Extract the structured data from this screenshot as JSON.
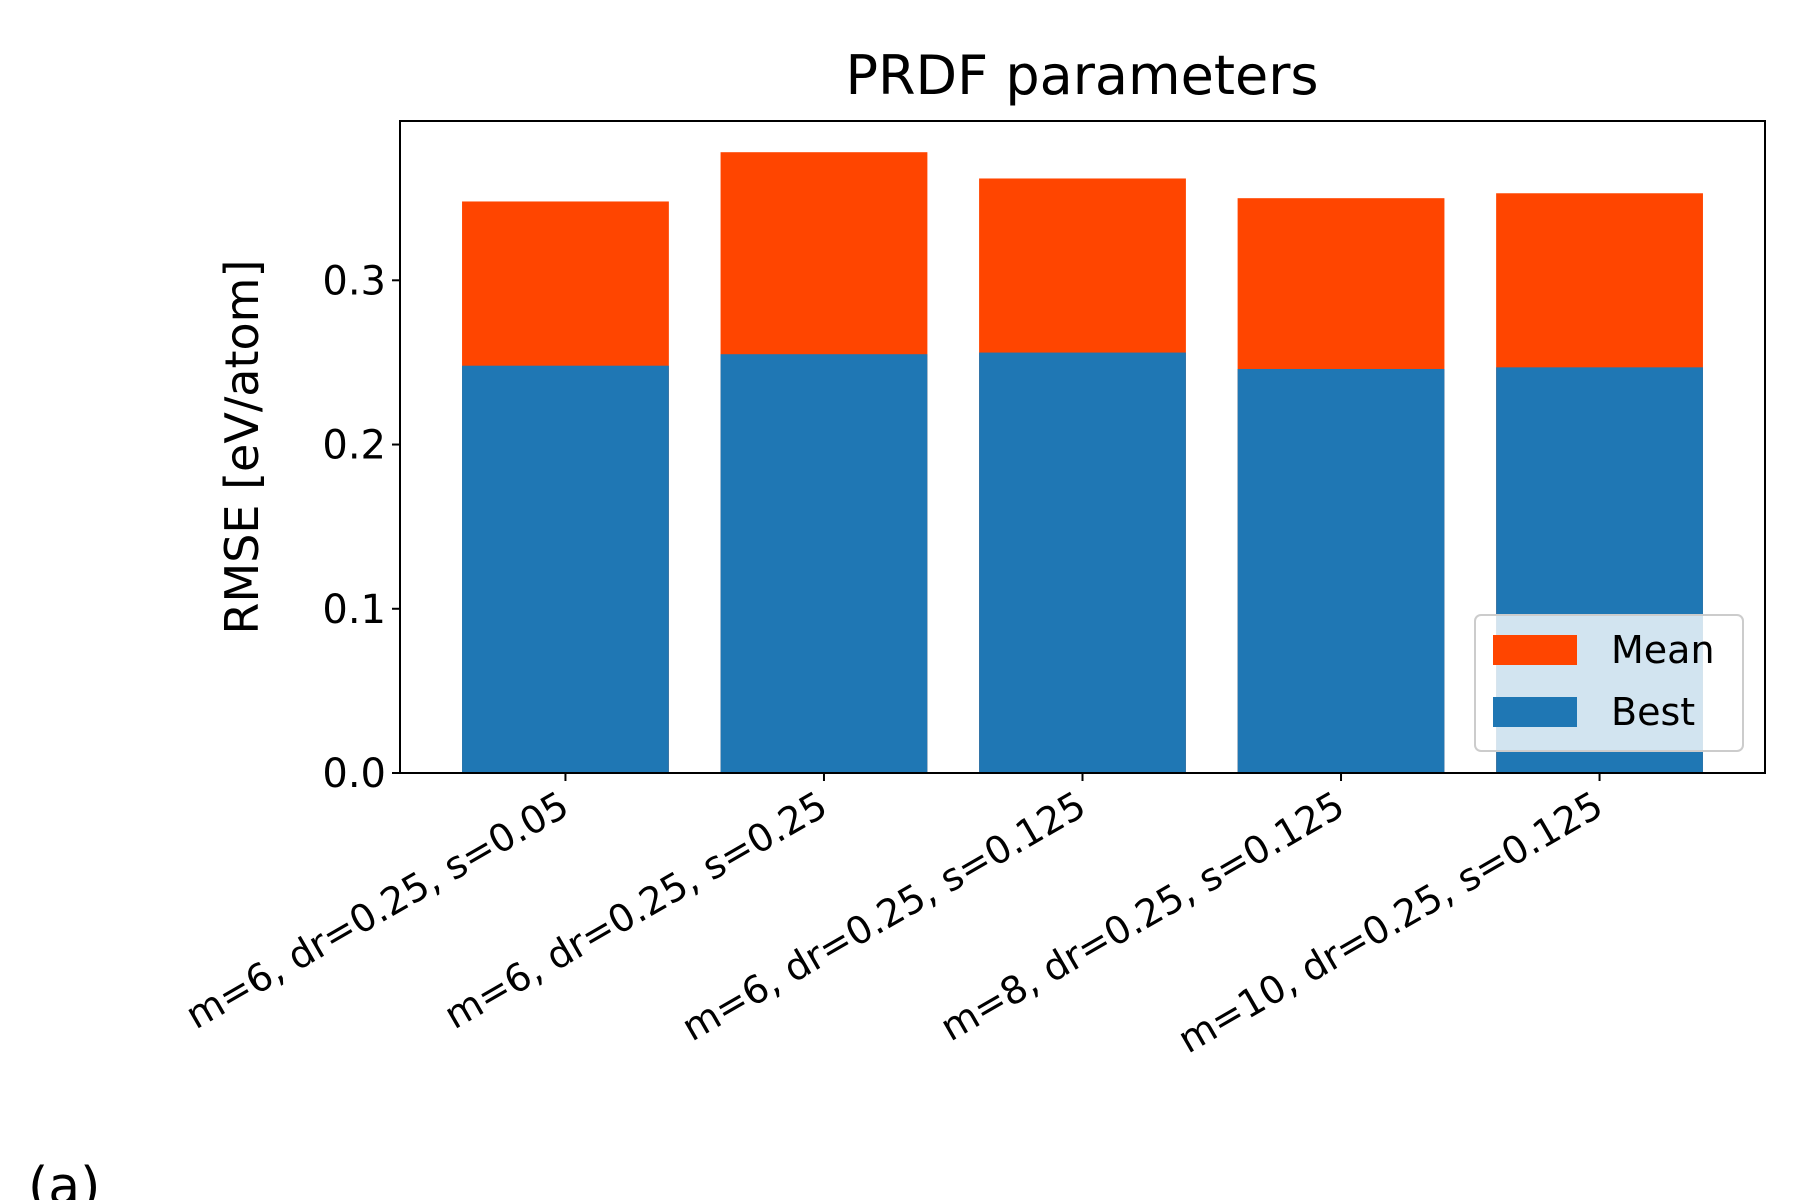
{
  "chart_data": {
    "type": "bar",
    "title": "PRDF parameters",
    "y_label": "RMSE [eV/atom]",
    "categories": [
      "m=6, dr=0.25, s=0.05",
      "m=6, dr=0.25, s=0.25",
      "m=6, dr=0.25, s=0.125",
      "m=8, dr=0.25, s=0.125",
      "m=10, dr=0.25, s=0.125"
    ],
    "series": [
      {
        "name": "Mean",
        "color": "#ff4500",
        "values": [
          0.348,
          0.378,
          0.362,
          0.35,
          0.353
        ]
      },
      {
        "name": "Best",
        "color": "#1f77b4",
        "values": [
          0.248,
          0.255,
          0.256,
          0.246,
          0.247
        ]
      }
    ],
    "ylim": [
      0,
      0.397
    ],
    "yticks": [
      {
        "value": 0,
        "label": "0.0"
      },
      0.1,
      0.2,
      0.3
    ],
    "legend": "lower right",
    "annotation": "(a)"
  }
}
